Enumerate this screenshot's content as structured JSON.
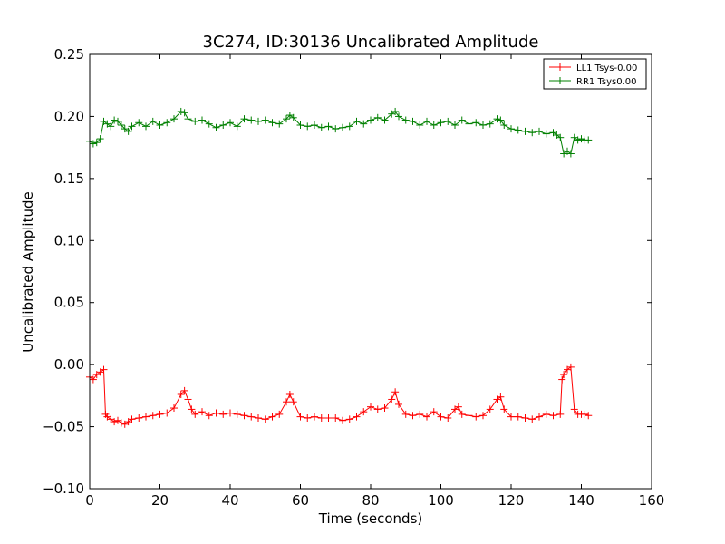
{
  "chart_data": {
    "type": "line",
    "title": "3C274, ID:30136 Uncalibrated Amplitude",
    "xlabel": "Time (seconds)",
    "ylabel": "Uncalibrated Amplitude",
    "xlim": [
      0,
      160
    ],
    "ylim": [
      -0.1,
      0.25
    ],
    "xticks": [
      0,
      20,
      40,
      60,
      80,
      100,
      120,
      140,
      160
    ],
    "xtick_labels": [
      "0",
      "20",
      "40",
      "60",
      "80",
      "100",
      "120",
      "140",
      "160"
    ],
    "yticks": [
      -0.1,
      -0.05,
      0.0,
      0.05,
      0.1,
      0.15,
      0.2,
      0.25
    ],
    "ytick_labels": [
      "−0.10",
      "−0.05",
      "0.00",
      "0.05",
      "0.10",
      "0.15",
      "0.20",
      "0.25"
    ],
    "grid": false,
    "legend_position": "top-right",
    "marker": "+",
    "series": [
      {
        "name": "LL1 Tsys-0.00",
        "color": "#ff0000",
        "x": [
          0,
          1,
          2,
          3,
          4,
          4.5,
          5,
          6,
          7,
          8,
          9,
          10,
          11,
          12,
          14,
          16,
          18,
          20,
          22,
          24,
          26,
          27,
          28,
          29,
          30,
          32,
          34,
          36,
          38,
          40,
          42,
          44,
          46,
          48,
          50,
          52,
          54,
          56,
          57,
          58,
          60,
          62,
          64,
          66,
          68,
          70,
          72,
          74,
          76,
          78,
          80,
          82,
          84,
          86,
          87,
          88,
          90,
          92,
          94,
          96,
          98,
          100,
          102,
          104,
          105,
          106,
          108,
          110,
          112,
          114,
          116,
          117,
          118,
          120,
          122,
          124,
          126,
          128,
          130,
          132,
          134,
          134.5,
          135,
          136,
          137,
          138,
          139,
          140,
          141,
          142
        ],
        "y": [
          -0.01,
          -0.012,
          -0.008,
          -0.006,
          -0.004,
          -0.04,
          -0.042,
          -0.044,
          -0.046,
          -0.045,
          -0.047,
          -0.048,
          -0.046,
          -0.044,
          -0.043,
          -0.042,
          -0.041,
          -0.04,
          -0.039,
          -0.035,
          -0.024,
          -0.021,
          -0.028,
          -0.036,
          -0.04,
          -0.038,
          -0.041,
          -0.039,
          -0.04,
          -0.039,
          -0.04,
          -0.041,
          -0.042,
          -0.043,
          -0.044,
          -0.042,
          -0.04,
          -0.03,
          -0.024,
          -0.03,
          -0.042,
          -0.043,
          -0.042,
          -0.043,
          -0.043,
          -0.043,
          -0.045,
          -0.044,
          -0.042,
          -0.038,
          -0.034,
          -0.036,
          -0.035,
          -0.028,
          -0.022,
          -0.032,
          -0.04,
          -0.041,
          -0.04,
          -0.042,
          -0.038,
          -0.042,
          -0.043,
          -0.036,
          -0.034,
          -0.04,
          -0.041,
          -0.042,
          -0.041,
          -0.036,
          -0.028,
          -0.026,
          -0.036,
          -0.042,
          -0.042,
          -0.043,
          -0.044,
          -0.042,
          -0.04,
          -0.041,
          -0.04,
          -0.012,
          -0.008,
          -0.004,
          -0.002,
          -0.036,
          -0.04,
          -0.04,
          -0.04,
          -0.041
        ]
      },
      {
        "name": "RR1 Tsys0.00",
        "color": "#008000",
        "x": [
          0,
          1,
          2,
          3,
          4,
          5,
          6,
          7,
          8,
          9,
          10,
          11,
          12,
          14,
          16,
          18,
          20,
          22,
          24,
          26,
          27,
          28,
          30,
          32,
          34,
          36,
          38,
          40,
          42,
          44,
          46,
          48,
          50,
          52,
          54,
          56,
          57,
          58,
          60,
          62,
          64,
          66,
          68,
          70,
          72,
          74,
          76,
          78,
          80,
          82,
          84,
          86,
          87,
          88,
          90,
          92,
          94,
          96,
          98,
          100,
          102,
          104,
          106,
          108,
          110,
          112,
          114,
          116,
          117,
          118,
          120,
          122,
          124,
          126,
          128,
          130,
          132,
          133,
          134,
          135,
          136,
          137,
          138,
          139,
          140,
          141,
          142
        ],
        "y": [
          0.18,
          0.178,
          0.179,
          0.182,
          0.196,
          0.194,
          0.192,
          0.197,
          0.196,
          0.193,
          0.19,
          0.188,
          0.192,
          0.195,
          0.192,
          0.196,
          0.193,
          0.195,
          0.198,
          0.204,
          0.203,
          0.198,
          0.196,
          0.197,
          0.194,
          0.191,
          0.193,
          0.195,
          0.192,
          0.198,
          0.197,
          0.196,
          0.197,
          0.195,
          0.194,
          0.198,
          0.201,
          0.199,
          0.193,
          0.192,
          0.193,
          0.191,
          0.192,
          0.19,
          0.191,
          0.192,
          0.196,
          0.194,
          0.197,
          0.199,
          0.197,
          0.202,
          0.204,
          0.2,
          0.197,
          0.196,
          0.193,
          0.196,
          0.193,
          0.195,
          0.196,
          0.193,
          0.197,
          0.194,
          0.195,
          0.193,
          0.194,
          0.198,
          0.197,
          0.193,
          0.19,
          0.189,
          0.188,
          0.187,
          0.188,
          0.186,
          0.187,
          0.185,
          0.183,
          0.17,
          0.172,
          0.17,
          0.183,
          0.181,
          0.182,
          0.181,
          0.181
        ]
      }
    ]
  }
}
